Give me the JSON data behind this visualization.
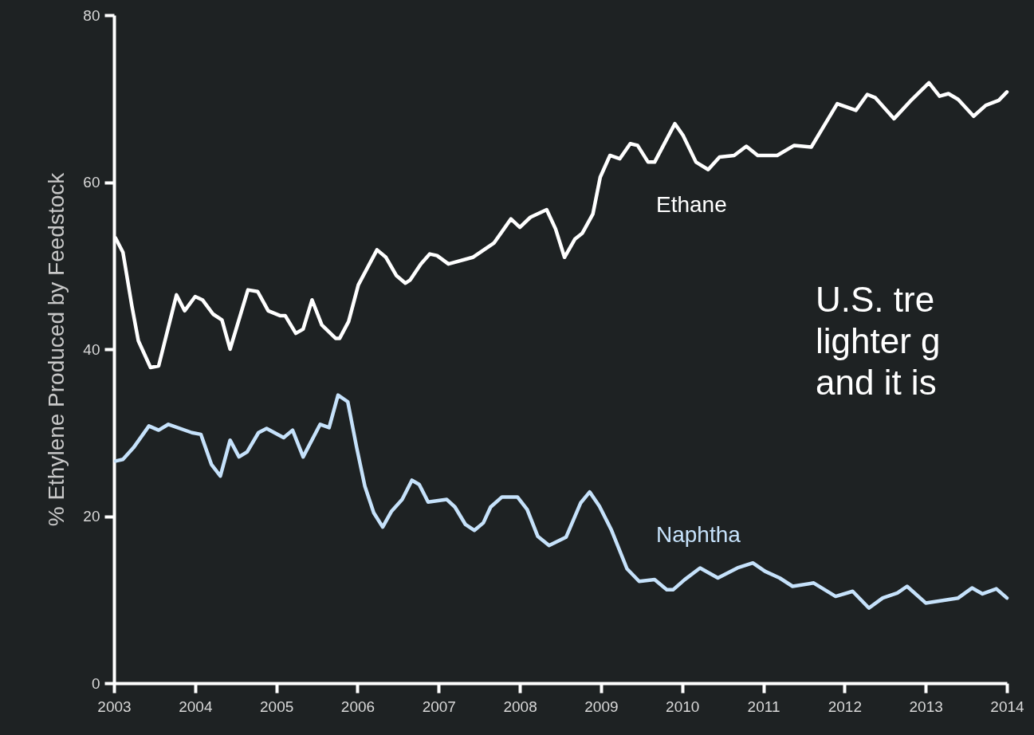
{
  "chart_data": {
    "type": "line",
    "ylabel": "% Ethylene Produced by Feedstock",
    "xlim": [
      2003,
      2014
    ],
    "xticks": [
      2003,
      2004,
      2005,
      2006,
      2007,
      2008,
      2009,
      2010,
      2011,
      2012,
      2013,
      2014
    ],
    "ylim": [
      0,
      80
    ],
    "yticks": [
      0,
      20,
      40,
      60,
      80
    ],
    "grid": false,
    "marker": "none",
    "line_style": "solid",
    "annotations": [
      "U.S. tre\nlighter g\nand it is"
    ],
    "series": [
      {
        "name": "Ethane",
        "color": "#ffffff",
        "x": [
          2003.02,
          2003.11,
          2003.22,
          2003.3,
          2003.45,
          2003.55,
          2003.77,
          2003.87,
          2004.0,
          2004.09,
          2004.22,
          2004.33,
          2004.43,
          2004.65,
          2004.77,
          2004.9,
          2005.05,
          2005.11,
          2005.24,
          2005.33,
          2005.44,
          2005.56,
          2005.73,
          2005.78,
          2005.89,
          2006.01,
          2006.24,
          2006.35,
          2006.48,
          2006.59,
          2006.65,
          2006.78,
          2006.89,
          2006.98,
          2007.12,
          2007.42,
          2007.68,
          2007.89,
          2008.0,
          2008.13,
          2008.33,
          2008.44,
          2008.55,
          2008.68,
          2008.77,
          2008.9,
          2008.99,
          2009.11,
          2009.23,
          2009.36,
          2009.45,
          2009.58,
          2009.66,
          2009.91,
          2010.01,
          2010.17,
          2010.32,
          2010.46,
          2010.64,
          2010.79,
          2010.93,
          2011.17,
          2011.38,
          2011.59,
          2011.91,
          2012.14,
          2012.28,
          2012.38,
          2012.61,
          2012.83,
          2013.04,
          2013.17,
          2013.28,
          2013.4,
          2013.59,
          2013.74,
          2013.9,
          2014.0
        ],
        "values": [
          53.3,
          51.6,
          45.2,
          41.0,
          37.8,
          38.0,
          46.5,
          44.6,
          46.3,
          45.9,
          44.2,
          43.5,
          40.0,
          47.1,
          46.9,
          44.6,
          44.0,
          44.0,
          41.9,
          42.4,
          45.9,
          42.9,
          41.3,
          41.3,
          43.3,
          47.7,
          51.9,
          51.0,
          48.8,
          47.9,
          48.3,
          50.2,
          51.4,
          51.2,
          50.2,
          51.0,
          52.7,
          55.6,
          54.6,
          55.8,
          56.7,
          54.4,
          51.0,
          53.2,
          53.9,
          56.2,
          60.6,
          63.2,
          62.8,
          64.6,
          64.4,
          62.4,
          62.4,
          67.0,
          65.6,
          62.4,
          61.5,
          63.0,
          63.2,
          64.3,
          63.2,
          63.2,
          64.4,
          64.2,
          69.4,
          68.6,
          70.5,
          70.1,
          67.6,
          69.9,
          71.9,
          70.3,
          70.6,
          69.9,
          67.9,
          69.2,
          69.8,
          70.8
        ]
      },
      {
        "name": "Naphtha",
        "color": "#c6e2fb",
        "x": [
          2003.02,
          2003.11,
          2003.24,
          2003.43,
          2003.55,
          2003.67,
          2003.96,
          2004.07,
          2004.2,
          2004.31,
          2004.43,
          2004.54,
          2004.64,
          2004.78,
          2004.88,
          2005.09,
          2005.2,
          2005.33,
          2005.54,
          2005.65,
          2005.76,
          2005.88,
          2005.99,
          2006.09,
          2006.2,
          2006.31,
          2006.42,
          2006.55,
          2006.67,
          2006.76,
          2006.87,
          2007.1,
          2007.2,
          2007.33,
          2007.44,
          2007.55,
          2007.64,
          2007.78,
          2007.97,
          2008.09,
          2008.22,
          2008.36,
          2008.57,
          2008.75,
          2008.86,
          2008.98,
          2009.13,
          2009.32,
          2009.47,
          2009.66,
          2009.81,
          2009.89,
          2010.03,
          2010.22,
          2010.44,
          2010.68,
          2010.87,
          2011.02,
          2011.2,
          2011.36,
          2011.62,
          2011.89,
          2012.1,
          2012.3,
          2012.47,
          2012.65,
          2012.77,
          2013.0,
          2013.4,
          2013.57,
          2013.7,
          2013.87,
          2014.0
        ],
        "values": [
          26.6,
          26.8,
          28.2,
          30.8,
          30.3,
          31.0,
          30.0,
          29.8,
          26.2,
          24.8,
          29.1,
          27.1,
          27.7,
          30.0,
          30.5,
          29.4,
          30.3,
          27.1,
          31.0,
          30.6,
          34.5,
          33.7,
          28.2,
          23.6,
          20.4,
          18.7,
          20.6,
          22.0,
          24.3,
          23.8,
          21.7,
          22.0,
          21.1,
          19.0,
          18.3,
          19.2,
          21.1,
          22.3,
          22.3,
          20.8,
          17.6,
          16.5,
          17.5,
          21.6,
          22.9,
          21.2,
          18.3,
          13.7,
          12.2,
          12.4,
          11.2,
          11.2,
          12.4,
          13.8,
          12.6,
          13.8,
          14.4,
          13.4,
          12.6,
          11.6,
          12.0,
          10.4,
          11.0,
          9.0,
          10.2,
          10.8,
          11.6,
          9.6,
          10.2,
          11.4,
          10.7,
          11.3,
          10.2
        ]
      }
    ]
  }
}
